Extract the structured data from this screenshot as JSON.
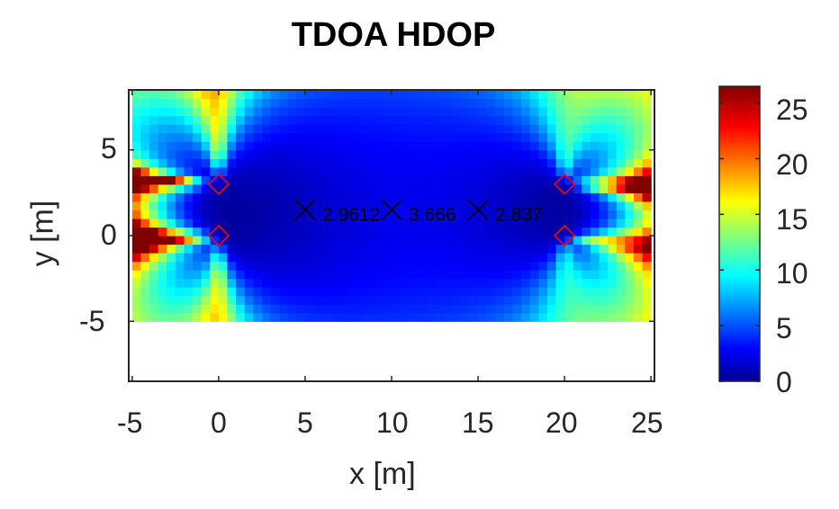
{
  "chart_data": {
    "type": "heatmap",
    "title": "TDOA HDOP",
    "xlabel": "x [m]",
    "ylabel": "y [m]",
    "xlim": [
      -5.2,
      25.2
    ],
    "ylim": [
      -8.5,
      8.5
    ],
    "xticks": [
      -5,
      0,
      5,
      10,
      15,
      20,
      25
    ],
    "yticks": [
      -5,
      0,
      5
    ],
    "grid": false,
    "colormap": "jet",
    "colorbar": {
      "range": [
        0,
        26.5
      ],
      "ticks": [
        0,
        5,
        10,
        15,
        20,
        25
      ]
    },
    "heatmap_extent": {
      "x": [
        -5,
        25
      ],
      "y": [
        -5,
        8.3
      ]
    },
    "anchors": [
      {
        "x": 0,
        "y": 3,
        "marker": "diamond",
        "color": "#ff0000"
      },
      {
        "x": 0,
        "y": 0,
        "marker": "diamond",
        "color": "#ff0000"
      },
      {
        "x": 20,
        "y": 3,
        "marker": "diamond",
        "color": "#ff0000"
      },
      {
        "x": 20,
        "y": 0,
        "marker": "diamond",
        "color": "#ff0000"
      }
    ],
    "test_points": [
      {
        "x": 5,
        "y": 1.5,
        "marker": "x",
        "label": "2.9612"
      },
      {
        "x": 10,
        "y": 1.5,
        "marker": "x",
        "label": "3.666"
      },
      {
        "x": 15,
        "y": 1.5,
        "marker": "x",
        "label": "2.837"
      }
    ],
    "anchor_color": "#ff0000",
    "marker_color": "#000000"
  },
  "labels": {
    "title": "TDOA HDOP",
    "xlabel": "x [m]",
    "ylabel": "y [m]",
    "xticks": [
      "-5",
      "0",
      "5",
      "10",
      "15",
      "20",
      "25"
    ],
    "yticks": [
      "5",
      "0",
      "-5"
    ],
    "cticks": [
      "25",
      "20",
      "15",
      "10",
      "5",
      "0"
    ],
    "point_labels": [
      "2.9612",
      "3.666",
      "2.837"
    ]
  }
}
